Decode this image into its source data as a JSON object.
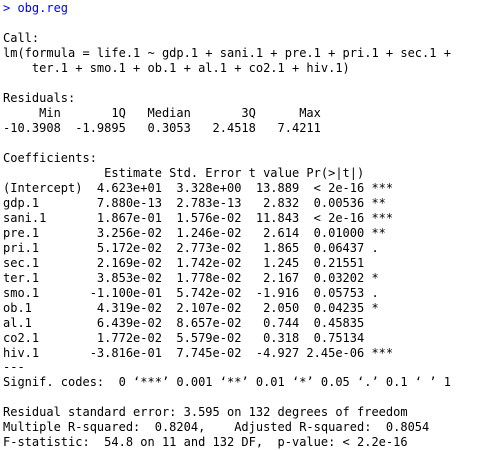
{
  "colors": {
    "command": "#0000ff",
    "output": "#000000",
    "background": "#ffffff"
  },
  "console": {
    "command_line": "> obg.reg",
    "call_header": "Call:",
    "formula_line1": "lm(formula = life.1 ~ gdp.1 + sani.1 + pre.1 + pri.1 + sec.1 +",
    "formula_line2": "    ter.1 + smo.1 + ob.1 + al.1 + co2.1 + hiv.1)",
    "residuals_header": "Residuals:",
    "residuals_labels": "     Min       1Q   Median       3Q      Max",
    "residuals_values": "-10.3908  -1.9895   0.3053   2.4518   7.4211",
    "coefficients_header": "Coefficients:",
    "coef_col_headers": "              Estimate Std. Error t value Pr(>|t|)    ",
    "coef_rows": [
      "(Intercept)  4.623e+01  3.328e+00  13.889  < 2e-16 ***",
      "gdp.1        7.880e-13  2.783e-13   2.832  0.00536 ** ",
      "sani.1       1.867e-01  1.576e-02  11.843  < 2e-16 ***",
      "pre.1        3.256e-02  1.246e-02   2.614  0.01000 ** ",
      "pri.1        5.172e-02  2.773e-02   1.865  0.06437 .  ",
      "sec.1        2.169e-02  1.742e-02   1.245  0.21551    ",
      "ter.1        3.853e-02  1.778e-02   2.167  0.03202 *  ",
      "smo.1       -1.100e-01  5.742e-02  -1.916  0.05753 .  ",
      "ob.1         4.319e-02  2.107e-02   2.050  0.04235 *  ",
      "al.1         6.439e-02  8.657e-02   0.744  0.45835    ",
      "co2.1        1.772e-02  5.579e-02   0.318  0.75134    ",
      "hiv.1       -3.816e-01  7.745e-02  -4.927 2.45e-06 ***"
    ],
    "separator": "---",
    "signif_codes": "Signif. codes:  0 ‘***’ 0.001 ‘**’ 0.01 ‘*’ 0.05 ‘.’ 0.1 ‘ ’ 1",
    "residual_se": "Residual standard error: 3.595 on 132 degrees of freedom",
    "r_squared": "Multiple R-squared:  0.8204,\tAdjusted R-squared:  0.8054 ",
    "f_statistic": "F-statistic:  54.8 on 11 and 132 DF,  p-value: < 2.2e-16"
  }
}
